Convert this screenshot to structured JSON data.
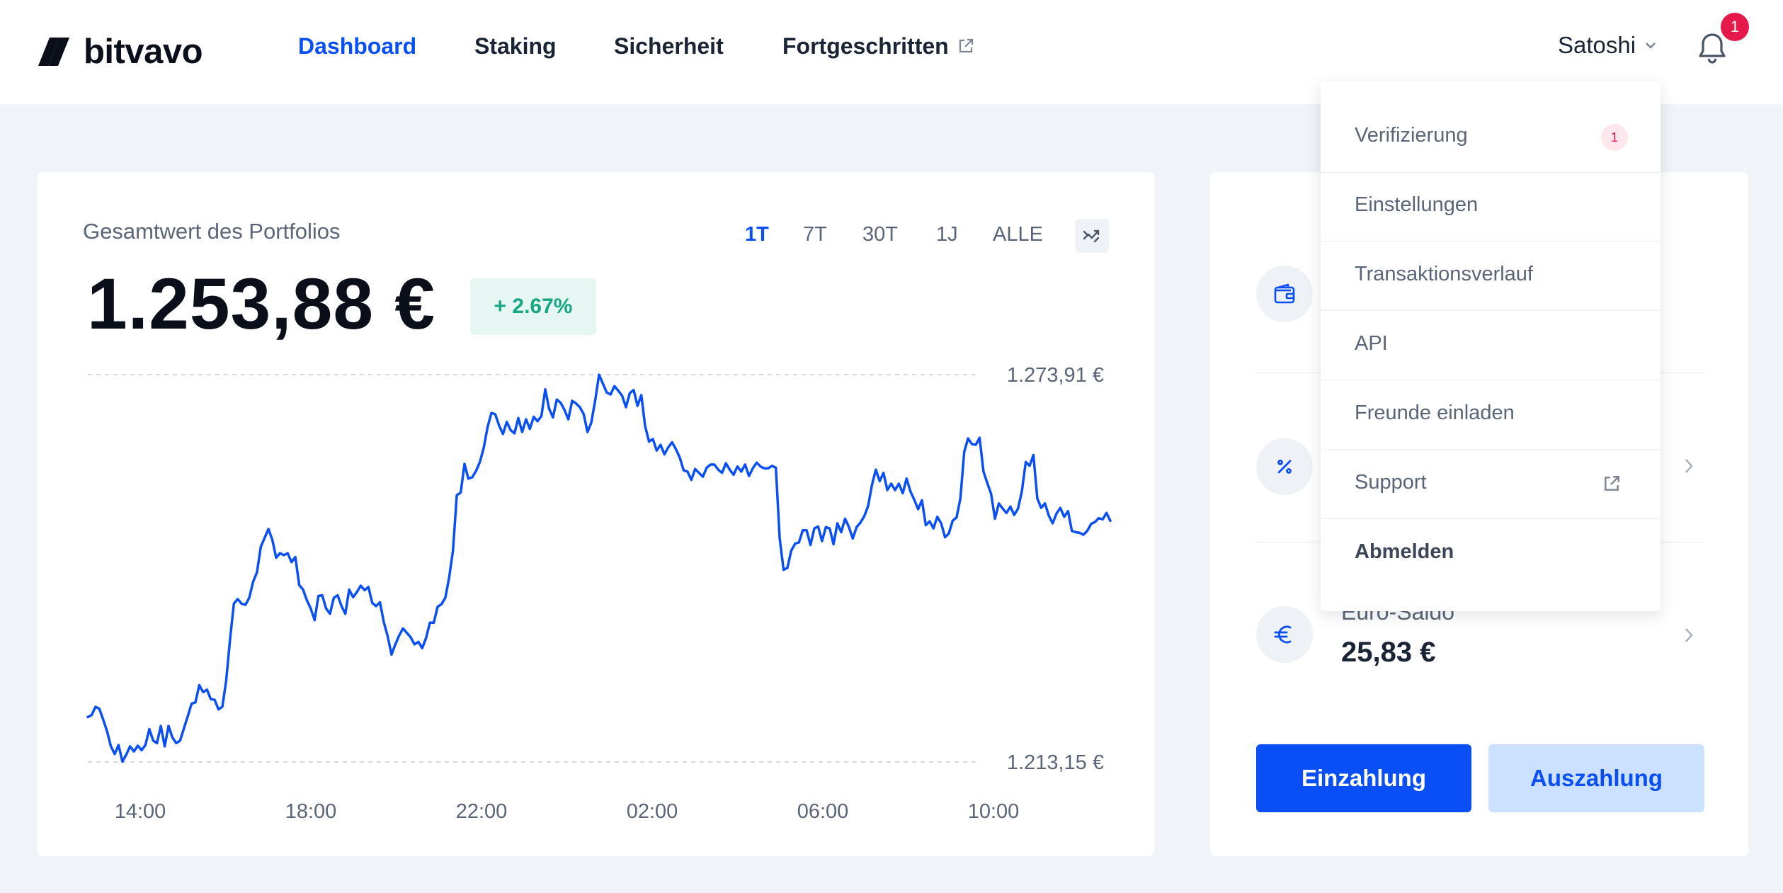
{
  "header": {
    "logo_text": "bitvavo",
    "nav": [
      {
        "label": "Dashboard",
        "active": true
      },
      {
        "label": "Staking",
        "active": false
      },
      {
        "label": "Sicherheit",
        "active": false
      },
      {
        "label": "Fortgeschritten",
        "active": false,
        "external": true
      }
    ],
    "user_name": "Satoshi",
    "notification_count": "1"
  },
  "portfolio": {
    "label": "Gesamtwert des Portfolios",
    "value": "1.253,88 €",
    "change": "+ 2.67%",
    "ranges": [
      {
        "label": "1T",
        "active": true
      },
      {
        "label": "7T",
        "active": false
      },
      {
        "label": "30T",
        "active": false
      },
      {
        "label": "1J",
        "active": false
      },
      {
        "label": "ALLE",
        "active": false
      }
    ],
    "compare_icon": "compare-icon"
  },
  "chart_data": {
    "type": "line",
    "title": "",
    "xlabel": "",
    "ylabel": "",
    "max_label": "1.273,91 €",
    "min_label": "1.213,15 €",
    "y_max": 1273.91,
    "y_min": 1213.15,
    "x_ticks": [
      "14:00",
      "18:00",
      "22:00",
      "02:00",
      "06:00",
      "10:00"
    ],
    "line_color": "#0a4ff5",
    "series": [
      {
        "values": [
          1220.2,
          1220.5,
          1221.8,
          1221.5,
          1219.8,
          1218.0,
          1215.6,
          1214.4,
          1215.8,
          1213.2,
          1214.3,
          1215.6,
          1214.8,
          1215.7,
          1215.0,
          1215.8,
          1218.3,
          1216.5,
          1216.1,
          1218.8,
          1215.6,
          1218.8,
          1217.0,
          1216.1,
          1216.5,
          1218.4,
          1220.3,
          1222.3,
          1222.5,
          1225.2,
          1224.1,
          1224.5,
          1223.0,
          1222.9,
          1221.4,
          1221.8,
          1225.9,
          1232.4,
          1238.0,
          1238.7,
          1238.0,
          1237.8,
          1238.9,
          1241.4,
          1242.9,
          1246.9,
          1248.3,
          1249.7,
          1248.0,
          1245.2,
          1245.9,
          1245.6,
          1245.9,
          1244.5,
          1245.3,
          1240.9,
          1240.2,
          1238.5,
          1237.2,
          1235.4,
          1239.2,
          1239.3,
          1237.2,
          1236.4,
          1238.9,
          1239.3,
          1237.6,
          1236.4,
          1240.2,
          1239.0,
          1239.8,
          1240.8,
          1240.1,
          1240.6,
          1238.1,
          1237.6,
          1238.2,
          1235.1,
          1232.9,
          1230.0,
          1231.6,
          1233.0,
          1234.1,
          1233.4,
          1232.7,
          1231.6,
          1232.0,
          1231.0,
          1232.6,
          1235.0,
          1235.0,
          1237.5,
          1237.9,
          1238.9,
          1242.1,
          1246.3,
          1255.0,
          1255.4,
          1259.9,
          1257.6,
          1257.8,
          1258.8,
          1260.2,
          1262.4,
          1265.7,
          1267.9,
          1267.7,
          1265.9,
          1264.6,
          1266.5,
          1265.2,
          1264.7,
          1267.1,
          1264.9,
          1266.9,
          1265.4,
          1267.3,
          1266.6,
          1267.4,
          1271.6,
          1268.6,
          1267.2,
          1270.0,
          1269.5,
          1268.4,
          1266.9,
          1269.8,
          1269.4,
          1268.8,
          1267.7,
          1264.9,
          1266.4,
          1269.9,
          1273.9,
          1272.5,
          1271.1,
          1270.8,
          1272.1,
          1271.4,
          1270.6,
          1268.8,
          1271.0,
          1271.5,
          1269.0,
          1270.7,
          1265.8,
          1263.4,
          1263.8,
          1262.0,
          1262.9,
          1261.4,
          1262.5,
          1263.3,
          1262.2,
          1260.9,
          1258.9,
          1258.7,
          1257.4,
          1259.1,
          1258.5,
          1257.9,
          1259.3,
          1259.8,
          1259.8,
          1259.0,
          1258.5,
          1260.0,
          1259.0,
          1258.2,
          1259.5,
          1258.7,
          1259.8,
          1258.0,
          1259.2,
          1260.1,
          1259.5,
          1259.2,
          1259.2,
          1259.6,
          1259.3,
          1248.2,
          1243.3,
          1243.6,
          1246.3,
          1247.4,
          1247.6,
          1249.5,
          1249.5,
          1247.2,
          1249.8,
          1250.1,
          1247.8,
          1250.0,
          1249.8,
          1247.3,
          1250.6,
          1249.2,
          1251.3,
          1250.0,
          1248.2,
          1250.0,
          1250.7,
          1251.7,
          1253.3,
          1256.6,
          1259.0,
          1257.2,
          1258.5,
          1255.8,
          1256.8,
          1255.8,
          1256.8,
          1255.3,
          1257.6,
          1255.6,
          1254.3,
          1252.8,
          1254.2,
          1250.3,
          1250.9,
          1249.8,
          1251.6,
          1250.6,
          1248.4,
          1249.0,
          1251.0,
          1251.5,
          1254.5,
          1261.8,
          1263.9,
          1263.0,
          1262.9,
          1264.0,
          1258.7,
          1256.9,
          1255.2,
          1251.3,
          1253.7,
          1252.9,
          1252.2,
          1253.2,
          1251.9,
          1252.9,
          1255.6,
          1260.2,
          1259.6,
          1261.3,
          1254.5,
          1253.0,
          1253.7,
          1251.8,
          1250.6,
          1252.1,
          1253.0,
          1251.6,
          1252.5,
          1249.4,
          1249.2,
          1249.1,
          1248.8,
          1249.4,
          1250.5,
          1250.8,
          1251.4,
          1251.2,
          1252.2,
          1251.0
        ]
      }
    ]
  },
  "side": {
    "rows": [
      {
        "icon": "wallet-icon",
        "title": "",
        "value": ""
      },
      {
        "icon": "percent-icon",
        "title": "",
        "value": ""
      },
      {
        "icon": "euro-icon",
        "title": "Euro-Saldo",
        "value": "25,83 €"
      }
    ],
    "deposit_label": "Einzahlung",
    "withdraw_label": "Auszahlung"
  },
  "dropdown": {
    "items": [
      {
        "label": "Verifizierung",
        "badge": "1"
      },
      {
        "label": "Einstellungen"
      },
      {
        "label": "Transaktionsverlauf"
      },
      {
        "label": "API"
      },
      {
        "label": "Freunde einladen"
      },
      {
        "label": "Support",
        "external": true
      },
      {
        "label": "Abmelden",
        "bold": true
      }
    ]
  },
  "colors": {
    "accent": "#0a4ff5",
    "positive": "#17a683",
    "badge": "#e5194a",
    "background": "#f0f3f7"
  }
}
